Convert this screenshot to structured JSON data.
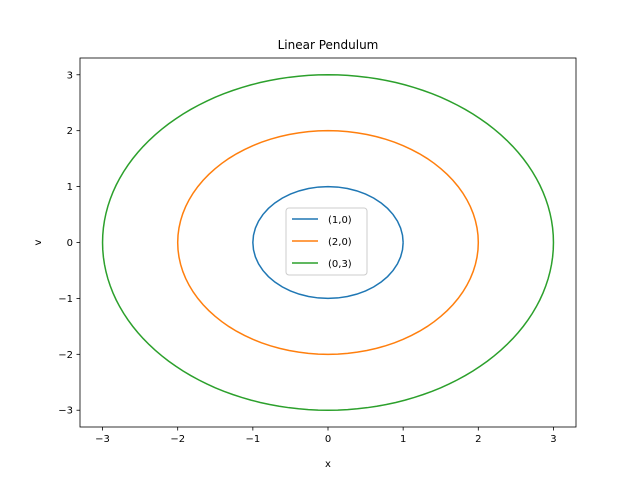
{
  "chart_data": {
    "type": "line",
    "title": "Linear Pendulum",
    "xlabel": "x",
    "ylabel": "v",
    "xlim": [
      -3.3,
      3.3
    ],
    "ylim": [
      -3.3,
      3.3
    ],
    "xticks": [
      -3,
      -2,
      -1,
      0,
      1,
      2,
      3
    ],
    "yticks": [
      -3,
      -2,
      -1,
      0,
      1,
      2,
      3
    ],
    "tick_labels_x": [
      "−3",
      "−2",
      "−1",
      "0",
      "1",
      "2",
      "3"
    ],
    "tick_labels_y": [
      "−3",
      "−2",
      "−1",
      "0",
      "1",
      "2",
      "3"
    ],
    "grid": false,
    "legend_position": "center",
    "series": [
      {
        "name": "(1,0)",
        "color": "#1f77b4",
        "shape": "circle",
        "radius": 1
      },
      {
        "name": "(2,0)",
        "color": "#ff7f0e",
        "shape": "circle",
        "radius": 2
      },
      {
        "name": "(0,3)",
        "color": "#2ca02c",
        "shape": "circle",
        "radius": 3
      }
    ]
  }
}
